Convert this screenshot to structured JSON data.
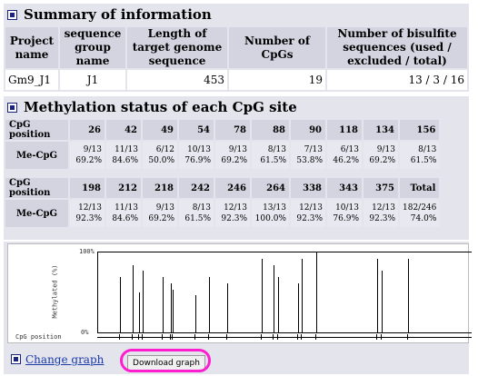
{
  "summary": {
    "title": "Summary of information",
    "headers": [
      "Project name",
      "sequence group name",
      "Length of target genome sequence",
      "Number of CpGs",
      "Number of bisulfite sequences (used / excluded / total)"
    ],
    "row": [
      "Gm9_J1",
      "J1",
      "453",
      "19",
      "13 / 3 / 16"
    ]
  },
  "methylation": {
    "title": "Methylation status of each CpG site",
    "row_label_pos": "CpG position",
    "row_label_me": "Me-CpG",
    "block1": {
      "positions": [
        "26",
        "42",
        "49",
        "54",
        "78",
        "88",
        "90",
        "118",
        "134",
        "156"
      ],
      "counts": [
        "9/13",
        "11/13",
        "6/12",
        "10/13",
        "9/13",
        "8/13",
        "7/13",
        "6/13",
        "9/13",
        "8/13"
      ],
      "percents": [
        "69.2%",
        "84.6%",
        "50.0%",
        "76.9%",
        "69.2%",
        "61.5%",
        "53.8%",
        "46.2%",
        "69.2%",
        "61.5%"
      ]
    },
    "block2": {
      "positions": [
        "198",
        "212",
        "218",
        "242",
        "246",
        "264",
        "338",
        "343",
        "375",
        "Total"
      ],
      "counts": [
        "12/13",
        "11/13",
        "9/13",
        "8/13",
        "12/13",
        "13/13",
        "12/13",
        "10/13",
        "12/13",
        "182/246"
      ],
      "percents": [
        "92.3%",
        "84.6%",
        "69.2%",
        "61.5%",
        "92.3%",
        "100.0%",
        "92.3%",
        "76.9%",
        "92.3%",
        "74.0%"
      ]
    }
  },
  "graph": {
    "y_top_label": "100%",
    "y_bottom_label": "0%",
    "y_axis_label": "Methylated (%)",
    "x_axis_label": "CpG position",
    "sequence_length": 453,
    "bars": [
      {
        "pos": 26,
        "pct": 69.2
      },
      {
        "pos": 42,
        "pct": 84.6
      },
      {
        "pos": 49,
        "pct": 50.0
      },
      {
        "pos": 54,
        "pct": 76.9
      },
      {
        "pos": 78,
        "pct": 69.2
      },
      {
        "pos": 88,
        "pct": 61.5
      },
      {
        "pos": 90,
        "pct": 53.8
      },
      {
        "pos": 118,
        "pct": 46.2
      },
      {
        "pos": 134,
        "pct": 69.2
      },
      {
        "pos": 156,
        "pct": 61.5
      },
      {
        "pos": 198,
        "pct": 92.3
      },
      {
        "pos": 212,
        "pct": 84.6
      },
      {
        "pos": 218,
        "pct": 69.2
      },
      {
        "pos": 242,
        "pct": 61.5
      },
      {
        "pos": 246,
        "pct": 92.3
      },
      {
        "pos": 264,
        "pct": 100.0
      },
      {
        "pos": 338,
        "pct": 92.3
      },
      {
        "pos": 343,
        "pct": 76.9
      },
      {
        "pos": 375,
        "pct": 92.3
      }
    ]
  },
  "actions": {
    "change_graph": "Change graph",
    "download_graph": "Download graph"
  },
  "colors": {
    "panel": "#e4e4ec",
    "header_cell": "#d4d4e0",
    "link": "#1a3aa8",
    "highlight_ring": "#ff1ecf"
  }
}
